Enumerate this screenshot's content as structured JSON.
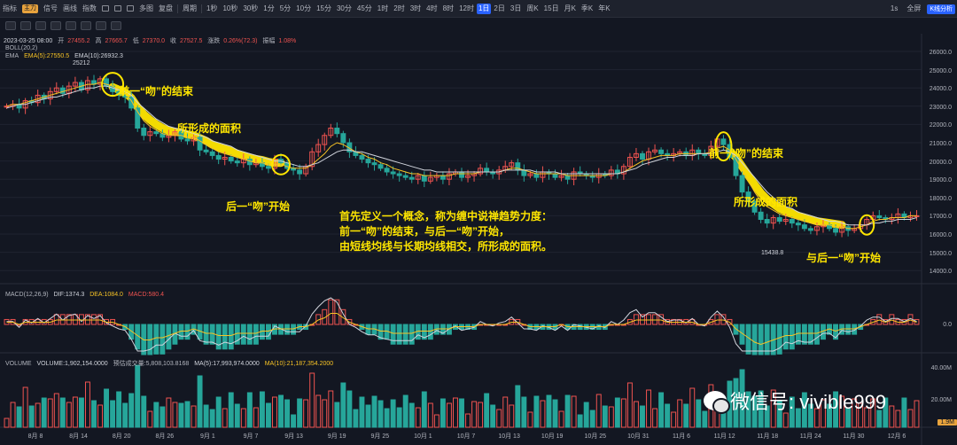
{
  "toolbar": {
    "items": [
      "指标",
      "主力",
      "信号",
      "画线",
      "指数",
      "",
      "",
      "",
      "多图",
      "复盘",
      "周期",
      "1秒",
      "10秒",
      "30秒",
      "1分",
      "5分",
      "10分",
      "15分",
      "30分",
      "45分",
      "1时",
      "2时",
      "3时",
      "4时",
      "8时",
      "12时",
      "1日",
      "2日",
      "3日",
      "周K",
      "15日",
      "月K",
      "季K",
      "年K"
    ],
    "active": "1日",
    "right": [
      "1s",
      "全屏",
      "K线分析"
    ]
  },
  "ohlc_line": {
    "date": "2023-03-25 08:00",
    "open_label": "开",
    "open": "27455.2",
    "high_label": "高",
    "high": "27665.7",
    "low_label": "低",
    "low": "27370.0",
    "close_label": "收",
    "close": "27527.5",
    "change_label": "涨跌",
    "change": "0.26%(72.3)",
    "amp_label": "振幅",
    "amp": "1.08%"
  },
  "boll_label": "BOLL(20,2)",
  "ema": {
    "label": "EMA",
    "ema5": "EMA(5):27550.5",
    "ema10": "EMA(10):26932.3"
  },
  "macd": {
    "label": "MACD(12,26,9)",
    "dif": "DIF:1374.3",
    "dea": "DEA:1084.0",
    "macd": "MACD:580.4"
  },
  "volume": {
    "label": "VOLUME",
    "value": "VOLUME:1,902,154.0000",
    "est": "预估成交量:5,808,103.8168",
    "ma5": "MA(5):17,993,974.0000",
    "ma10": "MA(10):21,187,354.2000"
  },
  "annotations": {
    "prev_end_1": "前一“吻”的结束",
    "area_1": "所形成的面积",
    "next_start_1": "后一“吻”开始",
    "prev_end_2": "前一“吻”的结束",
    "area_2": "所形成的面积",
    "next_start_2": "与后一“吻”开始",
    "def_line1": "首先定义一个概念，称为缠中说禅趋势力度：",
    "def_line2": "前一“吻”的结束，与后一“吻”开始，",
    "def_line3": "由短线均线与长期均线相交，所形成的面积。"
  },
  "high_marker": "25212",
  "low_marker": "15438.8",
  "price_axis": [
    "26000.0",
    "25000.0",
    "24000.0",
    "23000.0",
    "22000.0",
    "21000.0",
    "20000.0",
    "19000.0",
    "18000.0",
    "17000.0",
    "16000.0",
    "15000.0",
    "14000.0"
  ],
  "macd_axis": "0.0",
  "volume_axis": [
    "40.00M",
    "20.00M"
  ],
  "last_volume": "1.9M",
  "dates": [
    "8月 8",
    "8月 14",
    "8月 20",
    "8月 26",
    "9月 1",
    "9月 7",
    "9月 13",
    "9月 19",
    "9月 25",
    "10月 1",
    "10月 7",
    "10月 13",
    "10月 19",
    "10月 25",
    "10月 31",
    "11月 6",
    "11月 12",
    "11月 18",
    "11月 24",
    "11月 30",
    "12月 6"
  ],
  "watermark": "微信号: vivible999",
  "chart_data": {
    "type": "candlestick",
    "price_range": [
      14000,
      26000
    ],
    "closes": [
      23000,
      23100,
      22900,
      23300,
      23200,
      23600,
      23400,
      23800,
      24000,
      23700,
      24100,
      24300,
      23900,
      24400,
      24200,
      24500,
      24100,
      23800,
      23600,
      23500,
      22900,
      21800,
      21400,
      21600,
      21500,
      21300,
      21400,
      21600,
      21200,
      21100,
      21300,
      20600,
      20500,
      20300,
      20100,
      20200,
      20000,
      19900,
      20100,
      19800,
      19900,
      19700,
      19600,
      20100,
      19900,
      19600,
      19500,
      19300,
      19700,
      20500,
      20900,
      21400,
      21800,
      21500,
      21000,
      20500,
      20300,
      20100,
      19900,
      19800,
      19600,
      19400,
      19300,
      19200,
      19100,
      19000,
      19200,
      18900,
      19100,
      19200,
      19000,
      19300,
      19400,
      19100,
      19200,
      19300,
      19600,
      19400,
      19300,
      19500,
      19700,
      19900,
      19500,
      19200,
      19300,
      19100,
      19400,
      19300,
      19100,
      19200,
      19000,
      19400,
      19300,
      19200,
      19100,
      19300,
      19200,
      19500,
      19300,
      19700,
      20200,
      20400,
      20100,
      20500,
      20600,
      20400,
      20300,
      20400,
      20500,
      20300,
      20600,
      20400,
      20300,
      20800,
      21200,
      20900,
      20200,
      19200,
      18300,
      17800,
      17200,
      16800,
      16600,
      16900,
      16700,
      16800,
      16600,
      16500,
      16300,
      16200,
      16400,
      16500,
      16300,
      16100,
      16400,
      16200,
      16300,
      16500,
      16800,
      17000,
      16900,
      16800,
      16900,
      17100,
      16900,
      17000,
      17000
    ],
    "ema_short": [
      23000,
      23100,
      23100,
      23200,
      23300,
      23400,
      23500,
      23600,
      23700,
      23800,
      23900,
      24000,
      24100,
      24200,
      24200,
      24300,
      24200,
      24100,
      23900,
      23700,
      23300,
      22700,
      22200,
      21900,
      21700,
      21500,
      21400,
      21400,
      21400,
      21300,
      21300,
      21100,
      20900,
      20700,
      20500,
      20400,
      20300,
      20200,
      20100,
      20000,
      19900,
      19900,
      19800,
      19800,
      19800,
      19700,
      19600,
      19600,
      19600,
      19800,
      20100,
      20400,
      20800,
      21000,
      20900,
      20700,
      20500,
      20400,
      20200,
      20100,
      19900,
      19800,
      19600,
      19500,
      19400,
      19300,
      19300,
      19200,
      19200,
      19200,
      19200,
      19200,
      19300,
      19300,
      19300,
      19300,
      19400,
      19400,
      19400,
      19400,
      19500,
      19600,
      19600,
      19500,
      19400,
      19300,
      19300,
      19300,
      19300,
      19300,
      19200,
      19200,
      19200,
      19200,
      19200,
      19200,
      19200,
      19300,
      19300,
      19400,
      19600,
      19800,
      20000,
      20100,
      20200,
      20300,
      20300,
      20300,
      20400,
      20400,
      20400,
      20400,
      20400,
      20500,
      20700,
      20800,
      20600,
      20100,
      19500,
      18900,
      18300,
      17800,
      17500,
      17300,
      17100,
      17000,
      16900,
      16800,
      16700,
      16600,
      16500,
      16500,
      16500,
      16400,
      16400,
      16300,
      16300,
      16400,
      16500,
      16700,
      16800,
      16800,
      16900,
      16900,
      16900,
      17000,
      17000
    ],
    "ema_long": [
      22900,
      23000,
      23100,
      23100,
      23200,
      23300,
      23400,
      23500,
      23500,
      23600,
      23700,
      23800,
      23900,
      24000,
      24000,
      24100,
      24100,
      24000,
      23900,
      23800,
      23600,
      23200,
      22900,
      22600,
      22300,
      22100,
      21900,
      21800,
      21700,
      21600,
      21500,
      21400,
      21300,
      21100,
      21000,
      20900,
      20800,
      20600,
      20500,
      20400,
      20300,
      20200,
      20100,
      20000,
      20000,
      19900,
      19800,
      19700,
      19700,
      19800,
      19900,
      20100,
      20300,
      20500,
      20600,
      20600,
      20500,
      20500,
      20400,
      20300,
      20200,
      20100,
      20000,
      19900,
      19800,
      19700,
      19600,
      19500,
      19500,
      19400,
      19400,
      19400,
      19400,
      19400,
      19400,
      19400,
      19400,
      19400,
      19400,
      19400,
      19500,
      19500,
      19500,
      19500,
      19500,
      19400,
      19400,
      19400,
      19400,
      19300,
      19300,
      19300,
      19300,
      19300,
      19300,
      19300,
      19300,
      19300,
      19300,
      19400,
      19500,
      19600,
      19800,
      19900,
      20000,
      20100,
      20200,
      20200,
      20300,
      20300,
      20300,
      20400,
      20400,
      20400,
      20500,
      20600,
      20500,
      20300,
      19900,
      19500,
      19100,
      18700,
      18300,
      18000,
      17700,
      17500,
      17400,
      17200,
      17100,
      17000,
      16900,
      16800,
      16700,
      16700,
      16600,
      16500,
      16500,
      16500,
      16500,
      16600,
      16600,
      16700,
      16700,
      16800,
      16800,
      16800,
      16900
    ]
  }
}
